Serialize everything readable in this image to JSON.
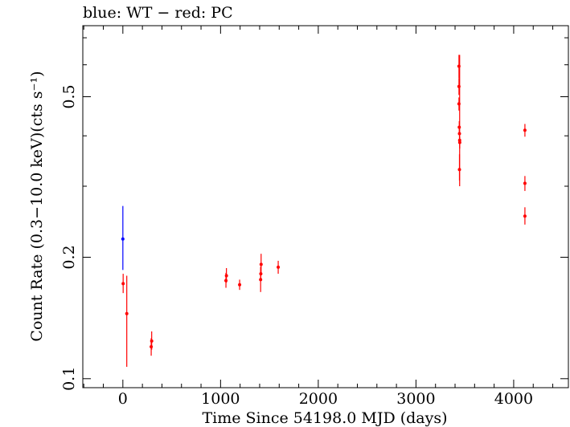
{
  "chart_data": {
    "type": "scatter",
    "title": "blue: WT − red: PC",
    "xlabel": "Time Since 54198.0 MJD (days)",
    "ylabel": "Count Rate (0.3−10.0 keV)(cts s⁻¹)",
    "x_scale": "linear",
    "y_scale": "log",
    "xlim": [
      -410,
      4560
    ],
    "ylim": [
      0.095,
      0.75
    ],
    "x_ticks": [
      0,
      1000,
      2000,
      3000,
      4000
    ],
    "x_tick_labels": [
      "0",
      "1000",
      "2000",
      "3000",
      "4000"
    ],
    "y_ticks": [
      0.1,
      0.2,
      0.5
    ],
    "y_tick_labels": [
      "0.1",
      "0.2",
      "0.5"
    ],
    "grid": false,
    "series": [
      {
        "name": "WT",
        "color": "#0000ff",
        "points": [
          {
            "x": 0,
            "y": 0.222,
            "ylo": 0.186,
            "yhi": 0.268
          }
        ]
      },
      {
        "name": "PC",
        "color": "#ff0000",
        "points": [
          {
            "x": 3,
            "y": 0.172,
            "ylo": 0.163,
            "yhi": 0.182
          },
          {
            "x": 40,
            "y": 0.145,
            "ylo": 0.107,
            "yhi": 0.18
          },
          {
            "x": 290,
            "y": 0.12,
            "ylo": 0.114,
            "yhi": 0.126
          },
          {
            "x": 295,
            "y": 0.124,
            "ylo": 0.118,
            "yhi": 0.131
          },
          {
            "x": 1055,
            "y": 0.175,
            "ylo": 0.168,
            "yhi": 0.183
          },
          {
            "x": 1060,
            "y": 0.18,
            "ylo": 0.173,
            "yhi": 0.188
          },
          {
            "x": 1195,
            "y": 0.171,
            "ylo": 0.166,
            "yhi": 0.176
          },
          {
            "x": 1410,
            "y": 0.176,
            "ylo": 0.164,
            "yhi": 0.189
          },
          {
            "x": 1412,
            "y": 0.182,
            "ylo": 0.175,
            "yhi": 0.19
          },
          {
            "x": 1415,
            "y": 0.192,
            "ylo": 0.181,
            "yhi": 0.204
          },
          {
            "x": 1590,
            "y": 0.189,
            "ylo": 0.182,
            "yhi": 0.196
          },
          {
            "x": 3440,
            "y": 0.595,
            "ylo": 0.555,
            "yhi": 0.635
          },
          {
            "x": 3440,
            "y": 0.53,
            "ylo": 0.505,
            "yhi": 0.555
          },
          {
            "x": 3440,
            "y": 0.48,
            "ylo": 0.462,
            "yhi": 0.498
          },
          {
            "x": 3443,
            "y": 0.42,
            "ylo": 0.405,
            "yhi": 0.435
          },
          {
            "x": 3445,
            "y": 0.405,
            "ylo": 0.39,
            "yhi": 0.42
          },
          {
            "x": 3447,
            "y": 0.39,
            "ylo": 0.3,
            "yhi": 0.635
          },
          {
            "x": 3448,
            "y": 0.385,
            "ylo": 0.372,
            "yhi": 0.398
          },
          {
            "x": 3445,
            "y": 0.33,
            "ylo": 0.31,
            "yhi": 0.36
          },
          {
            "x": 4115,
            "y": 0.413,
            "ylo": 0.398,
            "yhi": 0.428
          },
          {
            "x": 4115,
            "y": 0.305,
            "ylo": 0.292,
            "yhi": 0.318
          },
          {
            "x": 4115,
            "y": 0.253,
            "ylo": 0.241,
            "yhi": 0.266
          }
        ]
      }
    ]
  }
}
